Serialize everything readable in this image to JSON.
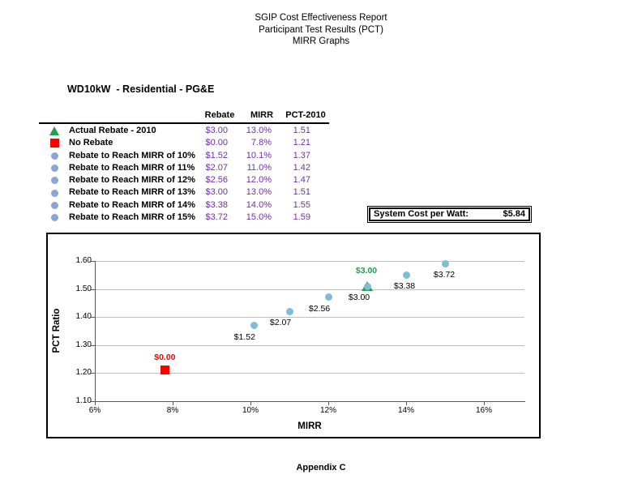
{
  "header": {
    "line1": "SGIP Cost Effectiveness Report",
    "line2": "Participant Test Results (PCT)",
    "line3": "MIRR Graphs"
  },
  "section_title": "WD10kW  - Residential - PG&E",
  "table": {
    "columns": {
      "rebate": "Rebate",
      "mirr": "MIRR",
      "pct": "PCT-2010"
    },
    "rows": [
      {
        "marker": "triangle",
        "label": "Actual Rebate - 2010",
        "rebate": "$3.00",
        "mirr": "13.0%",
        "pct": "1.51"
      },
      {
        "marker": "square",
        "label": "No Rebate",
        "rebate": "$0.00",
        "mirr": "7.8%",
        "pct": "1.21"
      },
      {
        "marker": "circle",
        "label": "Rebate to Reach MIRR of 10%",
        "rebate": "$1.52",
        "mirr": "10.1%",
        "pct": "1.37"
      },
      {
        "marker": "circle",
        "label": "Rebate to Reach MIRR of 11%",
        "rebate": "$2.07",
        "mirr": "11.0%",
        "pct": "1.42"
      },
      {
        "marker": "circle",
        "label": "Rebate to Reach MIRR of 12%",
        "rebate": "$2.56",
        "mirr": "12.0%",
        "pct": "1.47"
      },
      {
        "marker": "circle",
        "label": "Rebate to Reach MIRR of 13%",
        "rebate": "$3.00",
        "mirr": "13.0%",
        "pct": "1.51"
      },
      {
        "marker": "circle",
        "label": "Rebate to Reach MIRR of 14%",
        "rebate": "$3.38",
        "mirr": "14.0%",
        "pct": "1.55"
      },
      {
        "marker": "circle",
        "label": "Rebate to Reach MIRR of 15%",
        "rebate": "$3.72",
        "mirr": "15.0%",
        "pct": "1.59"
      }
    ]
  },
  "system_cost": {
    "label": "System Cost per Watt:",
    "value": "$5.84"
  },
  "chart_data": {
    "type": "scatter",
    "xlabel": "MIRR",
    "ylabel": "PCT Ratio",
    "xlim": [
      6,
      17
    ],
    "ylim": [
      1.1,
      1.6
    ],
    "grid": "horizontal",
    "legend_position": "none",
    "x_ticks": [
      {
        "value": 6,
        "label": "6%"
      },
      {
        "value": 8,
        "label": "8%"
      },
      {
        "value": 10,
        "label": "10%"
      },
      {
        "value": 12,
        "label": "12%"
      },
      {
        "value": 14,
        "label": "14%"
      },
      {
        "value": 16,
        "label": "16%"
      }
    ],
    "y_ticks": [
      {
        "value": 1.1,
        "label": "1.10"
      },
      {
        "value": 1.2,
        "label": "1.20"
      },
      {
        "value": 1.3,
        "label": "1.30"
      },
      {
        "value": 1.4,
        "label": "1.40"
      },
      {
        "value": 1.5,
        "label": "1.50"
      },
      {
        "value": 1.6,
        "label": "1.60"
      }
    ],
    "series": [
      {
        "name": "Actual Rebate - 2010",
        "marker": "triangle",
        "color": "#22A04C",
        "points": [
          {
            "x": 13.0,
            "y": 1.51,
            "label": "$3.00",
            "label_pos": "above",
            "label_dx": -1,
            "label_dy": -19,
            "label_color": "#22A04C",
            "label_bold": true
          }
        ]
      },
      {
        "name": "No Rebate",
        "marker": "square",
        "color": "#FE0000",
        "points": [
          {
            "x": 7.8,
            "y": 1.21,
            "label": "$0.00",
            "label_pos": "above",
            "label_dx": 0,
            "label_dy": -16,
            "label_color": "#FE0000",
            "label_bold": true
          }
        ]
      },
      {
        "name": "Rebate to Reach MIRR of 10% - 15%",
        "marker": "circle",
        "color": "#7DBDD8",
        "points": [
          {
            "x": 10.1,
            "y": 1.37,
            "label": "$1.52",
            "label_pos": "below",
            "label_dx": -12
          },
          {
            "x": 11.0,
            "y": 1.42,
            "label": "$2.07",
            "label_pos": "below",
            "label_dx": -11
          },
          {
            "x": 12.0,
            "y": 1.47,
            "label": "$2.56",
            "label_pos": "below",
            "label_dx": -11
          },
          {
            "x": 13.0,
            "y": 1.51,
            "label": "$3.00",
            "label_pos": "below",
            "label_dx": -10
          },
          {
            "x": 14.0,
            "y": 1.55,
            "label": "$3.38",
            "label_pos": "below",
            "label_dx": -2
          },
          {
            "x": 15.0,
            "y": 1.59,
            "label": "$3.72",
            "label_pos": "below",
            "label_dx": -1
          }
        ]
      }
    ]
  },
  "footer": {
    "label": "Appendix C"
  },
  "colors": {
    "value_text_purple": "#7030A0",
    "green": "#22A04C",
    "red": "#FE0000",
    "chart_blue": "#7DBDD8",
    "legend_blue": "#8CA5D6",
    "gridline": "#C0C0C0",
    "axis": "#595959"
  }
}
